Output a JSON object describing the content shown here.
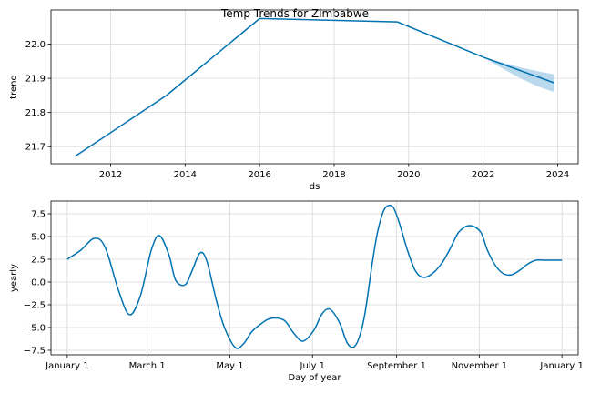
{
  "chart_data": [
    {
      "type": "line",
      "title": "Temp Trends for Zimbabwe",
      "xlabel": "ds",
      "ylabel": "trend",
      "xlim": [
        2010.4,
        2024.55
      ],
      "ylim": [
        21.65,
        22.1
      ],
      "xticks": [
        2012,
        2014,
        2016,
        2018,
        2020,
        2022,
        2024
      ],
      "yticks": [
        21.7,
        21.8,
        21.9,
        22.0
      ],
      "ytick_labels": [
        "21.7",
        "21.8",
        "21.9",
        "22.0"
      ],
      "grid": true,
      "series": [
        {
          "x": [
            2011.05,
            2013.5,
            2016.0,
            2019.7,
            2022.0,
            2023.9
          ],
          "y": [
            21.672,
            21.85,
            22.075,
            22.065,
            21.962,
            21.887
          ]
        }
      ],
      "uncertainty": {
        "x": [
          2022.0,
          2022.5,
          2023.0,
          2023.5,
          2023.9
        ],
        "lower": [
          21.962,
          21.93,
          21.9,
          21.875,
          21.86
        ],
        "upper": [
          21.962,
          21.947,
          21.932,
          21.92,
          21.912
        ]
      },
      "color": "#0072b2",
      "band_color": "#9ec9e6"
    },
    {
      "type": "line",
      "xlabel": "Day of year",
      "ylabel": "yearly",
      "xlim": [
        -12,
        377
      ],
      "ylim": [
        -8.0,
        8.9
      ],
      "xticks": [
        0,
        59,
        120,
        181,
        243,
        304,
        365
      ],
      "xtick_labels": [
        "January 1",
        "March 1",
        "May 1",
        "July 1",
        "September 1",
        "November 1",
        "January 1"
      ],
      "yticks": [
        -7.5,
        -5.0,
        -2.5,
        0.0,
        2.5,
        5.0,
        7.5
      ],
      "ytick_labels": [
        "−7.5",
        "−5.0",
        "−2.5",
        "0.0",
        "2.5",
        "5.0",
        "7.5"
      ],
      "grid": true,
      "series": [
        {
          "x": [
            0,
            10,
            20,
            28,
            38,
            46,
            54,
            62,
            68,
            75,
            80,
            87,
            92,
            98,
            103,
            110,
            116,
            124,
            130,
            136,
            142,
            150,
            160,
            167,
            174,
            182,
            188,
            194,
            201,
            207,
            213,
            219,
            225,
            229,
            234,
            240,
            245,
            251,
            257,
            263,
            270,
            277,
            283,
            289,
            297,
            305,
            310,
            316,
            322,
            328,
            334,
            340,
            346,
            352,
            358,
            365
          ],
          "y": [
            2.5,
            3.5,
            4.8,
            3.8,
            -1.0,
            -3.6,
            -1.5,
            3.5,
            5.1,
            3.0,
            0.2,
            -0.3,
            1.2,
            3.2,
            2.3,
            -2.0,
            -5.0,
            -7.2,
            -6.8,
            -5.5,
            -4.7,
            -4.0,
            -4.2,
            -5.6,
            -6.5,
            -5.3,
            -3.5,
            -3.0,
            -4.5,
            -6.8,
            -6.9,
            -4.0,
            2.0,
            5.5,
            8.0,
            8.3,
            6.5,
            3.5,
            1.2,
            0.5,
            1.0,
            2.2,
            3.8,
            5.5,
            6.2,
            5.5,
            3.5,
            1.8,
            0.9,
            0.8,
            1.3,
            2.0,
            2.4,
            2.4,
            2.4,
            2.4
          ],
          "note_on_values": ""
        }
      ],
      "color": "#0072b2"
    }
  ]
}
